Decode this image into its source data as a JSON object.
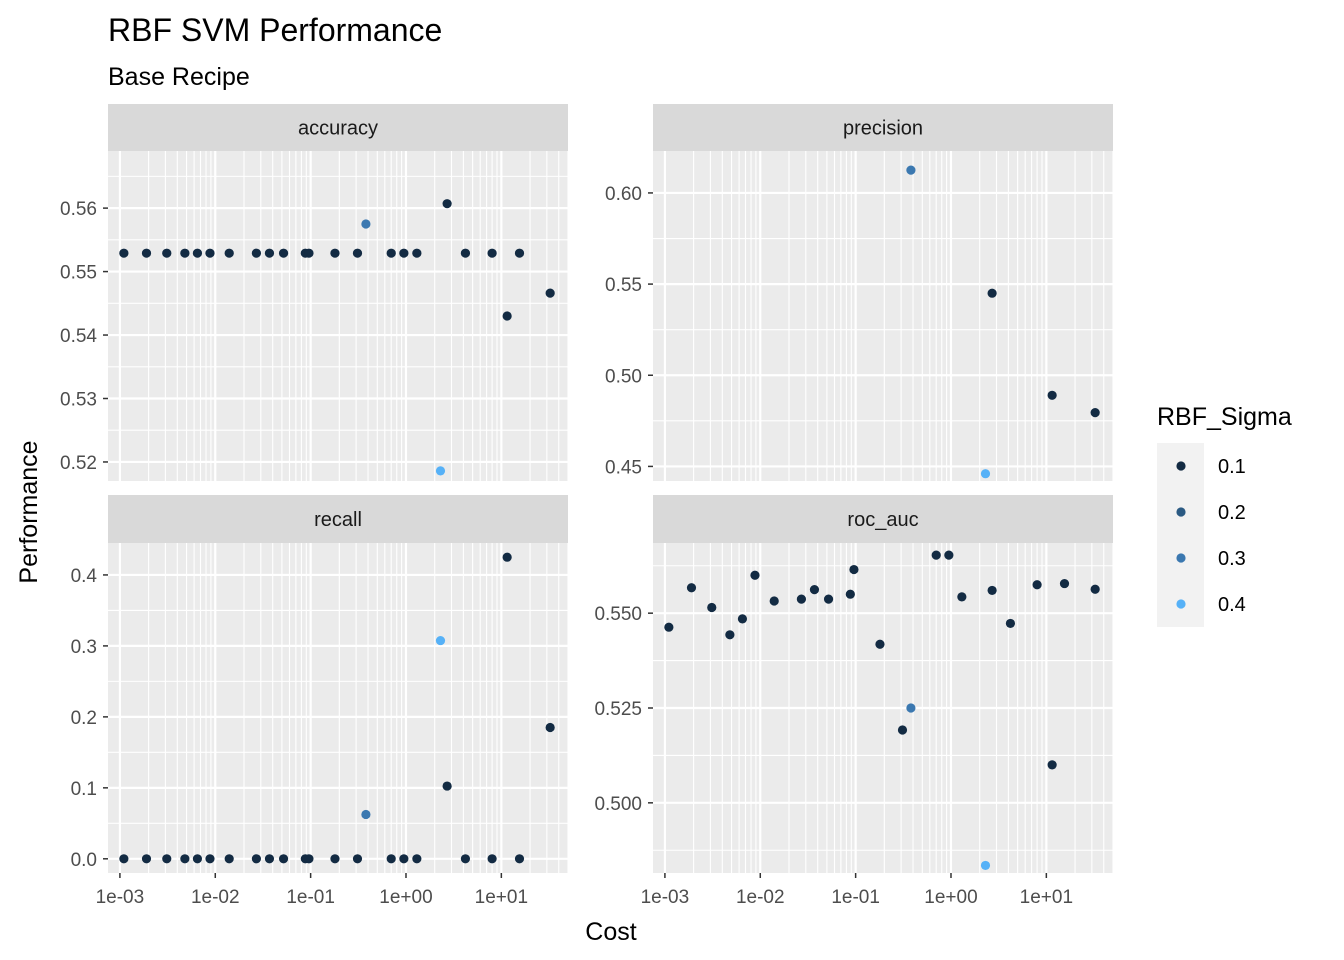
{
  "chart_data": {
    "type": "scatter",
    "title": "RBF SVM Performance",
    "subtitle": "Base Recipe",
    "xlabel": "Cost",
    "ylabel": "Performance",
    "x_scale": "log10",
    "xlim": [
      0.00075,
      50
    ],
    "x_ticks": [
      0.001,
      0.01,
      0.1,
      1,
      10
    ],
    "x_tick_labels": [
      "1e-03",
      "1e-02",
      "1e-01",
      "1e+00",
      "1e+01"
    ],
    "legend": {
      "title": "RBF_Sigma",
      "position": "right",
      "entries": [
        {
          "label": "0.1",
          "color": "#132b43"
        },
        {
          "label": "0.2",
          "color": "#2b5a83"
        },
        {
          "label": "0.3",
          "color": "#3b78b0"
        },
        {
          "label": "0.4",
          "color": "#56b1f7"
        }
      ]
    },
    "panels": [
      {
        "name": "accuracy",
        "ylim": [
          0.517,
          0.569
        ],
        "y_ticks": [
          0.52,
          0.53,
          0.54,
          0.55,
          0.56
        ],
        "y_tick_labels": [
          "0.52",
          "0.53",
          "0.54",
          "0.55",
          "0.56"
        ],
        "points": [
          {
            "x": 0.0011,
            "y": 0.5529,
            "sigma": "0.1"
          },
          {
            "x": 0.0019,
            "y": 0.5529,
            "sigma": "0.1"
          },
          {
            "x": 0.0031,
            "y": 0.5529,
            "sigma": "0.1"
          },
          {
            "x": 0.0048,
            "y": 0.5529,
            "sigma": "0.1"
          },
          {
            "x": 0.0065,
            "y": 0.5529,
            "sigma": "0.1"
          },
          {
            "x": 0.0088,
            "y": 0.5529,
            "sigma": "0.1"
          },
          {
            "x": 0.014,
            "y": 0.5529,
            "sigma": "0.1"
          },
          {
            "x": 0.027,
            "y": 0.5529,
            "sigma": "0.1"
          },
          {
            "x": 0.037,
            "y": 0.5529,
            "sigma": "0.1"
          },
          {
            "x": 0.052,
            "y": 0.5529,
            "sigma": "0.1"
          },
          {
            "x": 0.088,
            "y": 0.5529,
            "sigma": "0.1"
          },
          {
            "x": 0.096,
            "y": 0.5529,
            "sigma": "0.1"
          },
          {
            "x": 0.18,
            "y": 0.5529,
            "sigma": "0.1"
          },
          {
            "x": 0.31,
            "y": 0.5529,
            "sigma": "0.1"
          },
          {
            "x": 0.38,
            "y": 0.5575,
            "sigma": "0.3"
          },
          {
            "x": 0.7,
            "y": 0.5529,
            "sigma": "0.1"
          },
          {
            "x": 0.95,
            "y": 0.5529,
            "sigma": "0.1"
          },
          {
            "x": 1.3,
            "y": 0.5529,
            "sigma": "0.1"
          },
          {
            "x": 2.3,
            "y": 0.5186,
            "sigma": "0.4"
          },
          {
            "x": 2.7,
            "y": 0.5607,
            "sigma": "0.1"
          },
          {
            "x": 4.2,
            "y": 0.5529,
            "sigma": "0.1"
          },
          {
            "x": 8.0,
            "y": 0.5529,
            "sigma": "0.1"
          },
          {
            "x": 11.5,
            "y": 0.543,
            "sigma": "0.1"
          },
          {
            "x": 15.5,
            "y": 0.5529,
            "sigma": "0.1"
          },
          {
            "x": 32.5,
            "y": 0.5466,
            "sigma": "0.1"
          }
        ]
      },
      {
        "name": "precision",
        "ylim": [
          0.442,
          0.623
        ],
        "y_ticks": [
          0.45,
          0.5,
          0.55,
          0.6
        ],
        "y_tick_labels": [
          "0.45",
          "0.50",
          "0.55",
          "0.60"
        ],
        "points": [
          {
            "x": 0.38,
            "y": 0.6125,
            "sigma": "0.3"
          },
          {
            "x": 2.7,
            "y": 0.545,
            "sigma": "0.1"
          },
          {
            "x": 11.5,
            "y": 0.489,
            "sigma": "0.1"
          },
          {
            "x": 32.5,
            "y": 0.4795,
            "sigma": "0.1"
          },
          {
            "x": 2.3,
            "y": 0.446,
            "sigma": "0.4"
          }
        ]
      },
      {
        "name": "recall",
        "ylim": [
          -0.02,
          0.445
        ],
        "y_ticks": [
          0.0,
          0.1,
          0.2,
          0.3,
          0.4
        ],
        "y_tick_labels": [
          "0.0",
          "0.1",
          "0.2",
          "0.3",
          "0.4"
        ],
        "points": [
          {
            "x": 0.0011,
            "y": 0.0,
            "sigma": "0.1"
          },
          {
            "x": 0.0019,
            "y": 0.0,
            "sigma": "0.1"
          },
          {
            "x": 0.0031,
            "y": 0.0,
            "sigma": "0.1"
          },
          {
            "x": 0.0048,
            "y": 0.0,
            "sigma": "0.1"
          },
          {
            "x": 0.0065,
            "y": 0.0,
            "sigma": "0.1"
          },
          {
            "x": 0.0088,
            "y": 0.0,
            "sigma": "0.1"
          },
          {
            "x": 0.014,
            "y": 0.0,
            "sigma": "0.1"
          },
          {
            "x": 0.027,
            "y": 0.0,
            "sigma": "0.1"
          },
          {
            "x": 0.037,
            "y": 0.0,
            "sigma": "0.1"
          },
          {
            "x": 0.052,
            "y": 0.0,
            "sigma": "0.1"
          },
          {
            "x": 0.088,
            "y": 0.0,
            "sigma": "0.1"
          },
          {
            "x": 0.096,
            "y": 0.0,
            "sigma": "0.1"
          },
          {
            "x": 0.18,
            "y": 0.0,
            "sigma": "0.1"
          },
          {
            "x": 0.31,
            "y": 0.0,
            "sigma": "0.1"
          },
          {
            "x": 0.38,
            "y": 0.0625,
            "sigma": "0.3"
          },
          {
            "x": 0.7,
            "y": 0.0,
            "sigma": "0.1"
          },
          {
            "x": 0.95,
            "y": 0.0,
            "sigma": "0.1"
          },
          {
            "x": 1.3,
            "y": 0.0,
            "sigma": "0.1"
          },
          {
            "x": 2.3,
            "y": 0.3075,
            "sigma": "0.4"
          },
          {
            "x": 2.7,
            "y": 0.1025,
            "sigma": "0.1"
          },
          {
            "x": 4.2,
            "y": 0.0,
            "sigma": "0.1"
          },
          {
            "x": 8.0,
            "y": 0.0,
            "sigma": "0.1"
          },
          {
            "x": 11.5,
            "y": 0.425,
            "sigma": "0.1"
          },
          {
            "x": 15.5,
            "y": 0.0,
            "sigma": "0.1"
          },
          {
            "x": 32.5,
            "y": 0.185,
            "sigma": "0.1"
          }
        ]
      },
      {
        "name": "roc_auc",
        "ylim": [
          0.4815,
          0.5685
        ],
        "y_ticks": [
          0.5,
          0.525,
          0.55
        ],
        "y_tick_labels": [
          "0.500",
          "0.525",
          "0.550"
        ],
        "points": [
          {
            "x": 0.0011,
            "y": 0.5463,
            "sigma": "0.1"
          },
          {
            "x": 0.0019,
            "y": 0.5567,
            "sigma": "0.1"
          },
          {
            "x": 0.0031,
            "y": 0.5515,
            "sigma": "0.1"
          },
          {
            "x": 0.0048,
            "y": 0.5443,
            "sigma": "0.1"
          },
          {
            "x": 0.0065,
            "y": 0.5485,
            "sigma": "0.1"
          },
          {
            "x": 0.0088,
            "y": 0.56,
            "sigma": "0.1"
          },
          {
            "x": 0.014,
            "y": 0.5532,
            "sigma": "0.1"
          },
          {
            "x": 0.027,
            "y": 0.5537,
            "sigma": "0.1"
          },
          {
            "x": 0.037,
            "y": 0.5562,
            "sigma": "0.1"
          },
          {
            "x": 0.052,
            "y": 0.5537,
            "sigma": "0.1"
          },
          {
            "x": 0.088,
            "y": 0.555,
            "sigma": "0.1"
          },
          {
            "x": 0.096,
            "y": 0.5615,
            "sigma": "0.1"
          },
          {
            "x": 0.18,
            "y": 0.5418,
            "sigma": "0.1"
          },
          {
            "x": 0.31,
            "y": 0.5192,
            "sigma": "0.1"
          },
          {
            "x": 0.38,
            "y": 0.525,
            "sigma": "0.3"
          },
          {
            "x": 0.7,
            "y": 0.5653,
            "sigma": "0.1"
          },
          {
            "x": 0.95,
            "y": 0.5653,
            "sigma": "0.1"
          },
          {
            "x": 1.3,
            "y": 0.5543,
            "sigma": "0.1"
          },
          {
            "x": 2.3,
            "y": 0.4835,
            "sigma": "0.4"
          },
          {
            "x": 2.7,
            "y": 0.556,
            "sigma": "0.1"
          },
          {
            "x": 4.2,
            "y": 0.5473,
            "sigma": "0.1"
          },
          {
            "x": 8.0,
            "y": 0.5575,
            "sigma": "0.1"
          },
          {
            "x": 11.5,
            "y": 0.51,
            "sigma": "0.1"
          },
          {
            "x": 15.5,
            "y": 0.5578,
            "sigma": "0.1"
          },
          {
            "x": 32.5,
            "y": 0.5563,
            "sigma": "0.1"
          }
        ]
      }
    ]
  }
}
